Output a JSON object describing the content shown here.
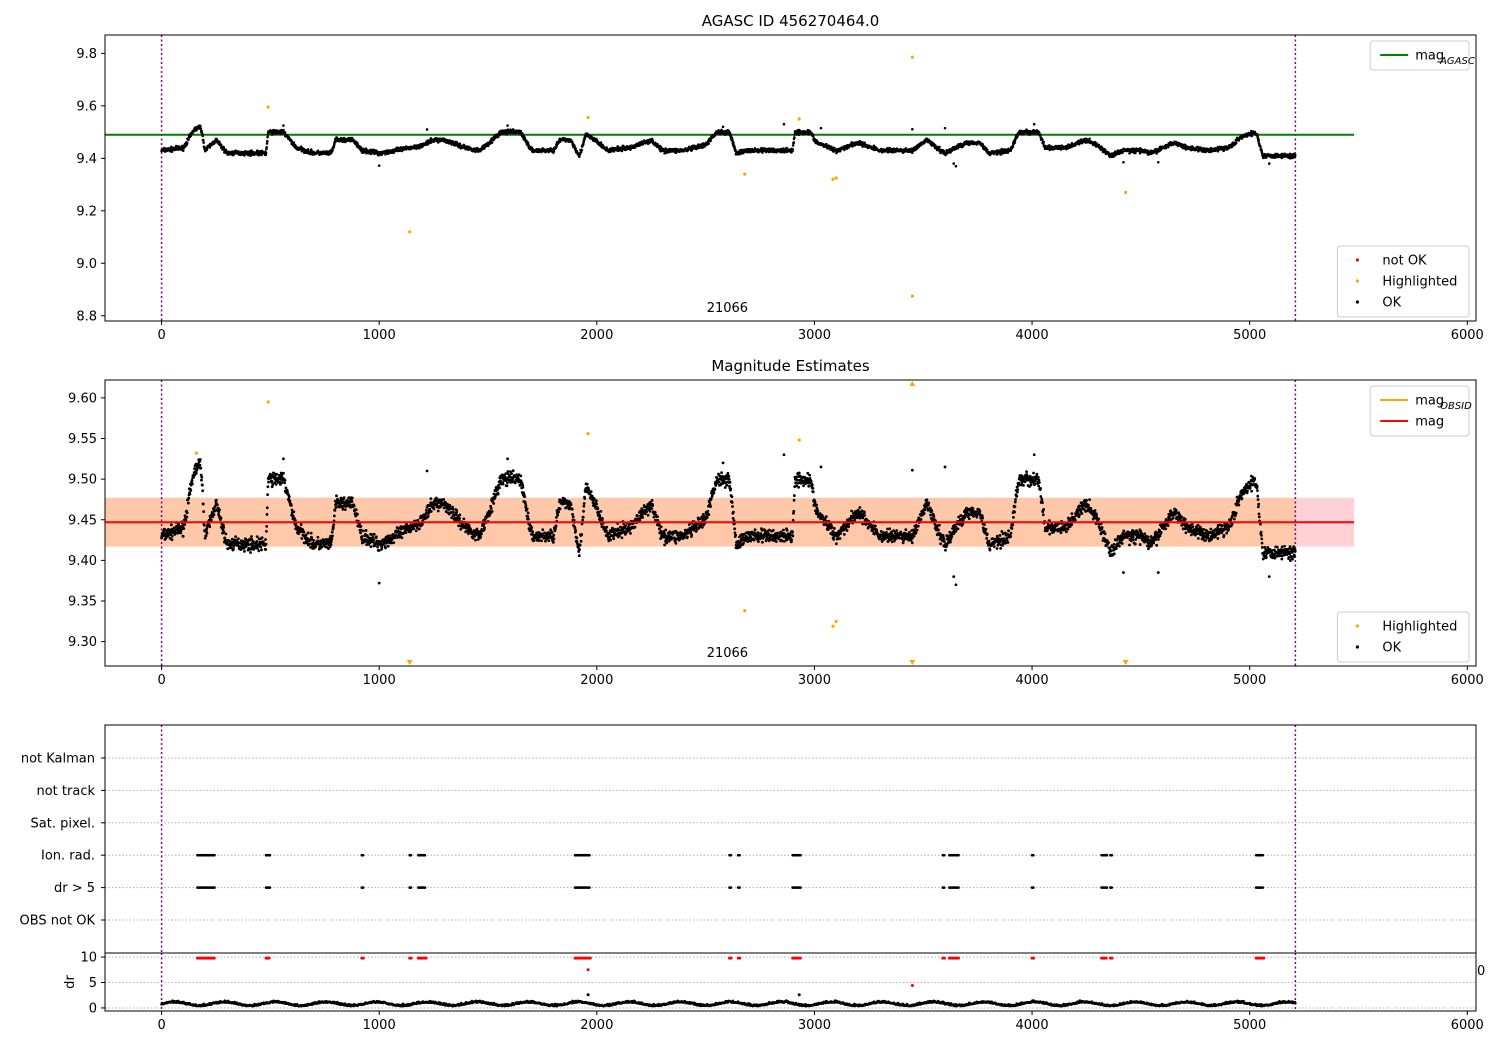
{
  "chart_data": [
    {
      "type": "scatter",
      "title": "AGASC ID 456270464.0",
      "xlim": [
        -260,
        6040
      ],
      "ylim": [
        8.78,
        9.87
      ],
      "xticks": [
        0,
        1000,
        2000,
        3000,
        4000,
        5000,
        6000
      ],
      "yticks": [
        8.8,
        9.0,
        9.2,
        9.4,
        9.6,
        9.8
      ],
      "ytick_labels": [
        "8.8",
        "9.0",
        "9.2",
        "9.4",
        "9.6",
        "9.8"
      ],
      "grid": false,
      "vlines": [
        0,
        5210
      ],
      "annotation": {
        "text": "21066",
        "x": 2600
      },
      "lines": [
        {
          "name": "mag_AGASC",
          "y": 9.49,
          "x_range": [
            -260,
            5480
          ],
          "color": "#008000"
        }
      ],
      "series": [
        {
          "name": "OK",
          "color": "#000000",
          "model": "mag"
        },
        {
          "name": "Highlighted",
          "color": "#ffa500",
          "points": [
            [
              490,
              9.595
            ],
            [
              1140,
              9.12
            ],
            [
              1960,
              9.555
            ],
            [
              2680,
              9.34
            ],
            [
              2930,
              9.55
            ],
            [
              3085,
              9.32
            ],
            [
              3100,
              9.325
            ],
            [
              3450,
              9.785
            ],
            [
              3450,
              8.875
            ],
            [
              4430,
              9.27
            ]
          ]
        },
        {
          "name": "not OK",
          "color": "#ff0000",
          "points": []
        }
      ],
      "legends": [
        {
          "placement": "upper right",
          "entries": [
            {
              "kind": "line",
              "color": "#008000",
              "text": "mag",
              "sub": "AGASC"
            }
          ]
        },
        {
          "placement": "lower right",
          "entries": [
            {
              "kind": "dot",
              "color": "#ff0000",
              "text": "not OK"
            },
            {
              "kind": "dot",
              "color": "#ffa500",
              "text": "Highlighted"
            },
            {
              "kind": "dot",
              "color": "#000000",
              "text": "OK"
            }
          ]
        }
      ]
    },
    {
      "type": "scatter",
      "title": "Magnitude Estimates",
      "xlim": [
        -260,
        6040
      ],
      "ylim": [
        9.27,
        9.622
      ],
      "xticks": [
        0,
        1000,
        2000,
        3000,
        4000,
        5000,
        6000
      ],
      "yticks": [
        9.3,
        9.35,
        9.4,
        9.45,
        9.5,
        9.55,
        9.6
      ],
      "ytick_labels": [
        "9.30",
        "9.35",
        "9.40",
        "9.45",
        "9.50",
        "9.55",
        "9.60"
      ],
      "grid": false,
      "vlines": [
        0,
        5210
      ],
      "annotation": {
        "text": "21066",
        "x": 2600
      },
      "band": {
        "y_low": 9.417,
        "y_high": 9.477,
        "x_range": [
          -260,
          5480
        ],
        "color": "#ffd0d6",
        "inner_color": "#ffc8a8"
      },
      "lines": [
        {
          "name": "mag",
          "y": 9.447,
          "x_range": [
            -260,
            5480
          ],
          "color": "#ff0000"
        }
      ],
      "series": [
        {
          "name": "OK",
          "color": "#000000",
          "model": "mag"
        },
        {
          "name": "Highlighted",
          "color": "#ffa500",
          "points": [
            [
              160,
              9.532
            ],
            [
              490,
              9.595
            ],
            [
              1960,
              9.556
            ],
            [
              2680,
              9.338
            ],
            [
              2930,
              9.548
            ],
            [
              3085,
              9.319
            ],
            [
              3100,
              9.325
            ]
          ]
        },
        {
          "name": "Highlighted (off axis)",
          "color": "#ffa500",
          "markers": [
            [
              1140,
              "down"
            ],
            [
              3450,
              "down"
            ],
            [
              3450,
              "up"
            ],
            [
              4430,
              "down"
            ]
          ]
        }
      ],
      "legends": [
        {
          "placement": "upper right",
          "entries": [
            {
              "kind": "line",
              "color": "#ffa500",
              "text": "mag",
              "sub": "OBSID"
            },
            {
              "kind": "line",
              "color": "#ff0000",
              "text": "mag",
              "sub": ""
            }
          ]
        },
        {
          "placement": "lower right",
          "entries": [
            {
              "kind": "dot",
              "color": "#ffa500",
              "text": "Highlighted"
            },
            {
              "kind": "dot",
              "color": "#000000",
              "text": "OK"
            }
          ]
        }
      ]
    },
    {
      "type": "scatter",
      "title": "",
      "xlim": [
        -260,
        6040
      ],
      "categories": [
        "not Kalman",
        "not track",
        "Sat. pixel.",
        "Ion. rad.",
        "dr > 5",
        "OBS not OK"
      ],
      "grid": true,
      "vlines": [
        0,
        5210
      ],
      "flag_clusters": [
        [
          165,
          245
        ],
        [
          480,
          500
        ],
        [
          920,
          930
        ],
        [
          1140,
          1150
        ],
        [
          1180,
          1215
        ],
        [
          1900,
          1970
        ],
        [
          2610,
          2620
        ],
        [
          2650,
          2660
        ],
        [
          2900,
          2940
        ],
        [
          3590,
          3600
        ],
        [
          3620,
          3665
        ],
        [
          4000,
          4010
        ],
        [
          4320,
          4345
        ],
        [
          4360,
          4370
        ],
        [
          5030,
          5065
        ]
      ],
      "flag_rows": [
        "Ion. rad.",
        "dr > 5"
      ]
    },
    {
      "type": "scatter",
      "title": "",
      "xlim": [
        -260,
        6040
      ],
      "ylim": [
        -0.6,
        10.8
      ],
      "ylabel": "dr",
      "xticks": [
        0,
        1000,
        2000,
        3000,
        4000,
        5000,
        6000
      ],
      "yticks": [
        0,
        5,
        10
      ],
      "ytick_labels": [
        "0",
        "5",
        "10"
      ],
      "grid": true,
      "vlines": [
        0,
        5210
      ],
      "edge_label": "0",
      "capped_points_y": 9.8,
      "outliers": [
        [
          1960,
          7.5
        ],
        [
          1960,
          2.6
        ],
        [
          2930,
          2.6
        ],
        [
          3450,
          4.4
        ]
      ],
      "series": [
        {
          "name": "dr",
          "color": "#000000"
        }
      ]
    }
  ]
}
